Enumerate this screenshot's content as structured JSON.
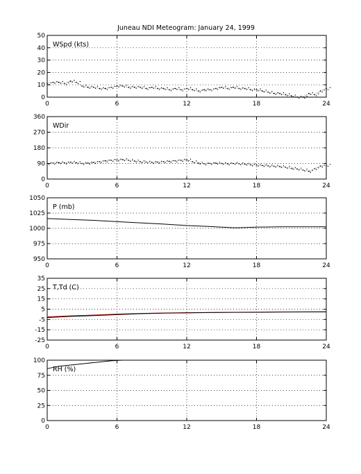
{
  "figure": {
    "title": "Juneau NDI Meteogram:    January 24, 1999"
  },
  "chart_data": [
    {
      "type": "scatter",
      "label": "WSpd (kts)",
      "xlim": [
        0,
        24
      ],
      "ylim": [
        0,
        50
      ],
      "xticks": [
        "0",
        "6",
        "12",
        "18",
        "24"
      ],
      "yticks": [
        "0",
        "10",
        "20",
        "30",
        "40",
        "50"
      ],
      "grid": true,
      "series": [
        {
          "color": "#000000",
          "x": [
            0,
            0.5,
            1,
            1.5,
            2,
            2.5,
            3,
            3.5,
            4,
            4.5,
            5,
            5.5,
            6,
            6.5,
            7,
            7.5,
            8,
            8.5,
            9,
            9.5,
            10,
            10.5,
            11,
            11.5,
            12,
            12.5,
            13,
            13.5,
            14,
            14.5,
            15,
            15.5,
            16,
            16.5,
            17,
            17.5,
            18,
            18.5,
            19,
            19.5,
            20,
            20.5,
            21,
            21.5,
            22,
            22.5,
            23,
            23.5,
            24
          ],
          "y": [
            11,
            12,
            12,
            11,
            13,
            12,
            9,
            8,
            8,
            7,
            7,
            8,
            9,
            9,
            8,
            8,
            8,
            7,
            8,
            7,
            7,
            6,
            7,
            6,
            7,
            6,
            5,
            6,
            6,
            7,
            8,
            7,
            8,
            7,
            7,
            6,
            6,
            5,
            4,
            3,
            3,
            2,
            1,
            0,
            0,
            3,
            2,
            5,
            7
          ]
        }
      ]
    },
    {
      "type": "scatter",
      "label": "WDir",
      "xlim": [
        0,
        24
      ],
      "ylim": [
        0,
        360
      ],
      "xticks": [
        "0",
        "6",
        "12",
        "18",
        "24"
      ],
      "yticks": [
        "0",
        "90",
        "180",
        "270",
        "360"
      ],
      "grid": true,
      "series": [
        {
          "color": "#000000",
          "x": [
            0,
            0.5,
            1,
            1.5,
            2,
            2.5,
            3,
            3.5,
            4,
            4.5,
            5,
            5.5,
            6,
            6.5,
            7,
            7.5,
            8,
            8.5,
            9,
            9.5,
            10,
            10.5,
            11,
            11.5,
            12,
            12.5,
            13,
            13.5,
            14,
            14.5,
            15,
            15.5,
            16,
            16.5,
            17,
            17.5,
            18,
            18.5,
            19,
            19.5,
            20,
            20.5,
            21,
            21.5,
            22,
            22.5,
            23,
            23.5,
            24
          ],
          "y": [
            90,
            92,
            95,
            93,
            97,
            94,
            90,
            92,
            96,
            100,
            105,
            108,
            110,
            112,
            108,
            104,
            100,
            98,
            96,
            98,
            100,
            102,
            105,
            108,
            110,
            100,
            92,
            88,
            90,
            92,
            90,
            88,
            90,
            88,
            86,
            82,
            80,
            78,
            76,
            74,
            72,
            68,
            62,
            58,
            52,
            45,
            60,
            75,
            80
          ]
        }
      ]
    },
    {
      "type": "line",
      "label": "P (mb)",
      "xlim": [
        0,
        24
      ],
      "ylim": [
        950,
        1050
      ],
      "xticks": [
        "0",
        "6",
        "12",
        "18",
        "24"
      ],
      "yticks": [
        "950",
        "975",
        "1000",
        "1025",
        "1050"
      ],
      "grid": true,
      "series": [
        {
          "color": "#000000",
          "x": [
            0,
            2,
            4,
            6,
            8,
            10,
            12,
            14,
            15,
            16,
            16.5,
            18,
            20,
            22,
            24
          ],
          "y": [
            1016,
            1014.5,
            1013,
            1011,
            1009,
            1007,
            1004.5,
            1003,
            1002,
            1001,
            1001,
            1002,
            1002.5,
            1002.5,
            1002.5
          ]
        }
      ]
    },
    {
      "type": "line",
      "label": "T,Td (C)",
      "xlim": [
        0,
        24
      ],
      "ylim": [
        -25,
        35
      ],
      "xticks": [
        "0",
        "6",
        "12",
        "18",
        "24"
      ],
      "yticks": [
        "-25",
        "-15",
        "-5",
        "5",
        "15",
        "25",
        "35"
      ],
      "grid": true,
      "series": [
        {
          "color": "#cc0000",
          "x": [
            0,
            2,
            4,
            6,
            8,
            10,
            12,
            14,
            16,
            18,
            20,
            22,
            24
          ],
          "y": [
            -2.5,
            -1.5,
            -0.7,
            0.2,
            0.9,
            1.3,
            1.6,
            1.8,
            2.0,
            2.1,
            2.3,
            2.4,
            2.5
          ]
        },
        {
          "color": "#000000",
          "x": [
            0,
            2,
            4,
            6,
            8,
            10,
            12,
            14,
            16,
            18,
            20,
            22,
            24
          ],
          "y": [
            -3.2,
            -2.0,
            -1.2,
            -0.3,
            0.6,
            1.1,
            1.4,
            1.7,
            1.9,
            2.0,
            2.2,
            2.3,
            2.4
          ]
        }
      ]
    },
    {
      "type": "line",
      "label": "RH (%)",
      "xlim": [
        0,
        24
      ],
      "ylim": [
        0,
        100
      ],
      "xticks": [
        "0",
        "6",
        "12",
        "18",
        "24"
      ],
      "yticks": [
        "0",
        "25",
        "50",
        "75",
        "100"
      ],
      "grid": true,
      "series": [
        {
          "color": "#000000",
          "x": [
            0,
            0.5,
            1,
            1.5,
            2,
            2.5,
            3,
            3.5,
            4,
            4.5,
            5,
            5.5,
            6,
            6.5,
            7
          ],
          "y": [
            86,
            88,
            90,
            91,
            92,
            93,
            94,
            95,
            96,
            97,
            98,
            99,
            99.5,
            100,
            100
          ]
        }
      ]
    }
  ]
}
